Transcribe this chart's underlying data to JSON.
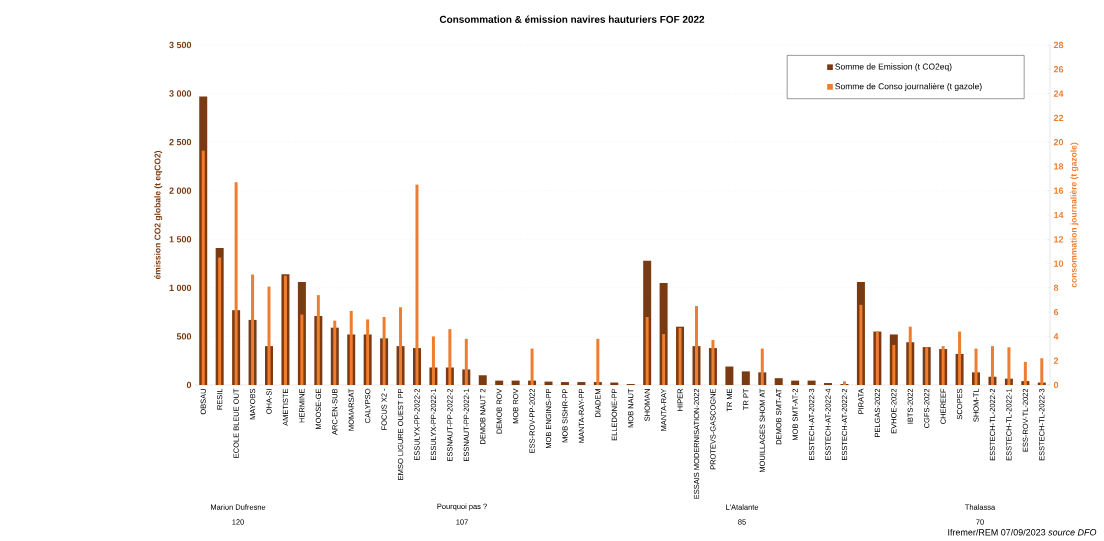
{
  "chart_data": {
    "type": "bar",
    "title": "Consommation & émission navires hauturiers FOF 2022",
    "ylabel": "émission CO2 globale  (t eqCO2)",
    "y2label": "consommation journalière  (t gazole)",
    "categories": [
      "OBSAU",
      "RESIL",
      "ECOLE BLEUE OUT",
      "MAYOBS",
      "OHA-SI",
      "AMETISTE",
      "HERMINE",
      "MOOSE-GE",
      "ARC-EN-SUB",
      "MOMARSAT",
      "CALYPSO",
      "FOCUS X2 -",
      "EMSO LIGURE OUEST PP",
      "ESSULYX-PP-2022-2",
      "ESSULYX-PP-2022-1",
      "ESSNAUT-PP-2022-2",
      "ESSNAUT-PP-2022-1",
      "DEMOB NAUT 2",
      "DEMOB ROV",
      "MOB ROV",
      "ESS-ROV-PP-2022",
      "MOB ENGINS-PP",
      "MOB SISHR-PP",
      "MANTA-RAY-PP",
      "DIADEM",
      "ELLEDONE-PP",
      "MOB NAUT",
      "SHOMAN",
      "MANTA-RAY",
      "HIPER",
      "ESSAIS MODERNISATION-2022",
      "PROTEVS-GASCOGNE",
      "TR ME",
      "TR PT",
      "MOUILLAGES SHOM AT",
      "DEMOB SMT-AT",
      "MOB SMT-AT-2",
      "ESSTECH-AT-2022-3",
      "ESSTECH-AT-2022-4",
      "ESSTECH-AT-2022-2",
      "PIRATA",
      "PELGAS-2022",
      "EVHOE-2022",
      "IBTS-2022",
      "CGFS-2022",
      "CHEREEF",
      "SCOPES",
      "SHOM-TL",
      "ESSTECH-TL-2022-2",
      "ESSTECH-TL-2022-1",
      "ESS-ROV-TL-2022",
      "ESSTECH-TL-2022-3"
    ],
    "series": [
      {
        "name": "Somme de Emission (t CO2eq)",
        "color": "#7a3b12",
        "axis": "y",
        "values": [
          2970,
          1410,
          770,
          670,
          400,
          1140,
          1060,
          710,
          590,
          520,
          520,
          480,
          400,
          380,
          180,
          180,
          160,
          100,
          45,
          45,
          45,
          35,
          30,
          30,
          30,
          25,
          10,
          1280,
          1050,
          600,
          400,
          380,
          190,
          140,
          130,
          70,
          45,
          45,
          20,
          10,
          1060,
          550,
          520,
          440,
          390,
          370,
          320,
          130,
          85,
          65,
          40,
          25
        ]
      },
      {
        "name": "Somme de Conso journalière (t gazole)",
        "color": "#ed7d31",
        "axis": "y2",
        "values": [
          19.3,
          10.5,
          16.7,
          9.1,
          8.1,
          9.0,
          5.8,
          7.4,
          5.3,
          6.1,
          5.4,
          5.6,
          6.4,
          16.5,
          4.0,
          4.6,
          3.8,
          null,
          null,
          null,
          3.0,
          null,
          null,
          null,
          3.8,
          null,
          null,
          5.6,
          4.2,
          4.7,
          6.5,
          3.7,
          null,
          null,
          3.0,
          null,
          null,
          null,
          null,
          0.3,
          6.6,
          4.4,
          3.3,
          4.8,
          3.1,
          3.2,
          4.4,
          3.0,
          3.2,
          3.1,
          1.9,
          2.2
        ]
      }
    ],
    "ylim": [
      0,
      3500
    ],
    "yticks": [
      0,
      500,
      {
        "value": 1000,
        "label": "1 000"
      },
      {
        "value": 1500,
        "label": "1 500"
      },
      {
        "value": 2000,
        "label": "2 000"
      },
      {
        "value": 2500,
        "label": "2 500"
      },
      {
        "value": 3000,
        "label": "3 000"
      },
      {
        "value": 3500,
        "label": "3 500"
      }
    ],
    "y2lim": [
      0,
      28
    ],
    "y2ticks": [
      0,
      2,
      4,
      6,
      8,
      10,
      12,
      14,
      16,
      18,
      20,
      22,
      24,
      26,
      28
    ],
    "grid": "y",
    "legend": "top right",
    "annotations": [
      "Marion Dufresne",
      "120",
      "Pourquoi pas ?",
      "107",
      "L'Atalante",
      "85",
      "Thalassa",
      "70",
      "Ifremer/REM 07/09/2023 *source DFO*"
    ]
  }
}
